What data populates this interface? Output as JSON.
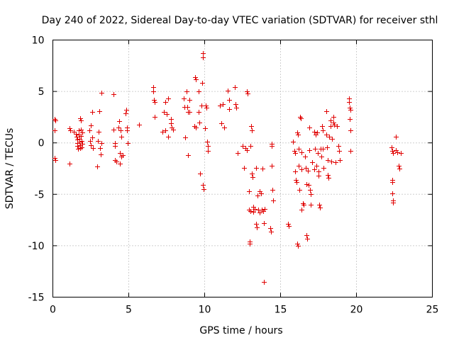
{
  "chart_data": {
    "type": "scatter",
    "title": "Day 240 of 2022, Sidereal Day-to-day VTEC variation (SDTVAR) for receiver sthl",
    "xlabel": "GPS time / hours",
    "ylabel": "SDTVAR / TECUs",
    "xlim": [
      0,
      25
    ],
    "ylim": [
      -15,
      10
    ],
    "xticks": [
      0,
      5,
      10,
      15,
      20,
      25
    ],
    "yticks": [
      -15,
      -10,
      -5,
      0,
      5,
      10
    ],
    "xtick_labels": [
      "0",
      "5",
      "10",
      "15",
      "20",
      "25"
    ],
    "ytick_labels": [
      "-15",
      "-10",
      "-5",
      "0",
      "5",
      "10"
    ],
    "grid": true,
    "marker": "+",
    "color": "#e00000",
    "series": [
      {
        "name": "SDTVAR",
        "points": [
          [
            0.1,
            2.3
          ],
          [
            0.15,
            2.2
          ],
          [
            0.1,
            1.2
          ],
          [
            0.1,
            -1.5
          ],
          [
            0.15,
            -1.7
          ],
          [
            1.1,
            1.4
          ],
          [
            1.15,
            1.2
          ],
          [
            1.1,
            -2.0
          ],
          [
            1.4,
            1.1
          ],
          [
            1.5,
            0.9
          ],
          [
            1.55,
            0.6
          ],
          [
            1.6,
            0.3
          ],
          [
            1.6,
            0.0
          ],
          [
            1.6,
            -0.3
          ],
          [
            1.65,
            -0.6
          ],
          [
            1.7,
            1.2
          ],
          [
            1.7,
            0.8
          ],
          [
            1.75,
            0.4
          ],
          [
            1.75,
            0.1
          ],
          [
            1.8,
            -0.2
          ],
          [
            1.8,
            -0.5
          ],
          [
            1.85,
            1.3
          ],
          [
            1.85,
            0.7
          ],
          [
            1.9,
            0.2
          ],
          [
            1.9,
            -0.4
          ],
          [
            1.95,
            1.0
          ],
          [
            1.95,
            -0.1
          ],
          [
            1.8,
            2.4
          ],
          [
            1.85,
            2.2
          ],
          [
            2.4,
            1.2
          ],
          [
            2.45,
            0.2
          ],
          [
            2.5,
            1.7
          ],
          [
            2.5,
            -0.2
          ],
          [
            2.6,
            3.0
          ],
          [
            2.6,
            0.5
          ],
          [
            2.65,
            -0.5
          ],
          [
            2.9,
            -2.3
          ],
          [
            2.95,
            0.2
          ],
          [
            3.0,
            1.1
          ],
          [
            3.05,
            3.1
          ],
          [
            3.1,
            -0.5
          ],
          [
            3.15,
            -1.1
          ],
          [
            3.2,
            4.9
          ],
          [
            3.2,
            0.0
          ],
          [
            4.0,
            4.7
          ],
          [
            4.0,
            1.3
          ],
          [
            4.1,
            0.0
          ],
          [
            4.1,
            -0.3
          ],
          [
            4.1,
            -1.7
          ],
          [
            4.2,
            -1.8
          ],
          [
            4.3,
            1.5
          ],
          [
            4.35,
            2.1
          ],
          [
            4.4,
            -1.0
          ],
          [
            4.4,
            -2.0
          ],
          [
            4.45,
            1.2
          ],
          [
            4.5,
            0.6
          ],
          [
            4.5,
            -1.3
          ],
          [
            4.6,
            -1.2
          ],
          [
            4.8,
            2.9
          ],
          [
            4.85,
            3.2
          ],
          [
            4.9,
            1.5
          ],
          [
            4.9,
            1.2
          ],
          [
            4.95,
            0.0
          ],
          [
            5.7,
            1.8
          ],
          [
            6.6,
            5.4
          ],
          [
            6.6,
            5.0
          ],
          [
            6.65,
            4.2
          ],
          [
            6.7,
            4.0
          ],
          [
            6.7,
            2.5
          ],
          [
            7.2,
            1.1
          ],
          [
            7.3,
            3.0
          ],
          [
            7.4,
            4.0
          ],
          [
            7.4,
            1.2
          ],
          [
            7.5,
            2.8
          ],
          [
            7.6,
            4.3
          ],
          [
            7.6,
            0.6
          ],
          [
            7.8,
            2.3
          ],
          [
            7.8,
            1.9
          ],
          [
            7.85,
            1.5
          ],
          [
            7.9,
            1.3
          ],
          [
            8.6,
            4.3
          ],
          [
            8.65,
            3.5
          ],
          [
            8.7,
            0.5
          ],
          [
            8.8,
            5.0
          ],
          [
            8.85,
            3.5
          ],
          [
            8.9,
            3.0
          ],
          [
            8.9,
            -1.2
          ],
          [
            9.0,
            4.2
          ],
          [
            9.0,
            3.0
          ],
          [
            9.3,
            1.6
          ],
          [
            9.35,
            6.4
          ],
          [
            9.4,
            6.2
          ],
          [
            9.4,
            1.5
          ],
          [
            9.6,
            5.0
          ],
          [
            9.6,
            3.0
          ],
          [
            9.65,
            2.0
          ],
          [
            9.7,
            -3.0
          ],
          [
            9.8,
            3.6
          ],
          [
            9.85,
            5.8
          ],
          [
            9.9,
            8.7
          ],
          [
            9.9,
            8.3
          ],
          [
            9.9,
            -4.1
          ],
          [
            9.95,
            -4.5
          ],
          [
            10.0,
            1.4
          ],
          [
            10.05,
            3.6
          ],
          [
            10.1,
            3.4
          ],
          [
            10.15,
            0.1
          ],
          [
            10.2,
            -0.3
          ],
          [
            10.2,
            -0.8
          ],
          [
            11.0,
            3.6
          ],
          [
            11.1,
            1.9
          ],
          [
            11.2,
            3.8
          ],
          [
            11.3,
            1.5
          ],
          [
            11.5,
            5.1
          ],
          [
            11.6,
            4.2
          ],
          [
            11.6,
            3.3
          ],
          [
            12.0,
            5.4
          ],
          [
            12.05,
            3.8
          ],
          [
            12.1,
            3.4
          ],
          [
            12.15,
            -1.0
          ],
          [
            12.5,
            -0.3
          ],
          [
            12.6,
            -2.4
          ],
          [
            12.7,
            -0.5
          ],
          [
            12.8,
            -0.7
          ],
          [
            12.8,
            5.0
          ],
          [
            12.85,
            4.8
          ],
          [
            12.9,
            -4.7
          ],
          [
            12.9,
            -6.5
          ],
          [
            12.95,
            -9.6
          ],
          [
            12.95,
            -9.8
          ],
          [
            13.0,
            -0.3
          ],
          [
            13.0,
            -6.6
          ],
          [
            13.05,
            1.6
          ],
          [
            13.1,
            1.2
          ],
          [
            13.1,
            -3.0
          ],
          [
            13.15,
            -3.3
          ],
          [
            13.2,
            -6.2
          ],
          [
            13.2,
            -6.7
          ],
          [
            13.3,
            -6.4
          ],
          [
            13.4,
            -2.4
          ],
          [
            13.4,
            -7.9
          ],
          [
            13.45,
            -8.2
          ],
          [
            13.5,
            -5.1
          ],
          [
            13.55,
            -6.5
          ],
          [
            13.6,
            -4.7
          ],
          [
            13.6,
            -6.8
          ],
          [
            13.7,
            -4.9
          ],
          [
            13.75,
            -6.5
          ],
          [
            13.8,
            -2.5
          ],
          [
            13.85,
            -6.6
          ],
          [
            13.9,
            -13.5
          ],
          [
            13.9,
            -7.8
          ],
          [
            13.95,
            -6.4
          ],
          [
            14.3,
            -8.3
          ],
          [
            14.35,
            -8.6
          ],
          [
            14.4,
            -0.1
          ],
          [
            14.4,
            -0.3
          ],
          [
            14.4,
            -2.2
          ],
          [
            14.45,
            -4.6
          ],
          [
            14.5,
            -5.6
          ],
          [
            15.5,
            -7.9
          ],
          [
            15.55,
            -8.1
          ],
          [
            15.8,
            0.1
          ],
          [
            15.9,
            -0.8
          ],
          [
            15.95,
            -1.0
          ],
          [
            15.95,
            -2.8
          ],
          [
            16.0,
            -3.6
          ],
          [
            16.05,
            -3.8
          ],
          [
            16.1,
            -9.8
          ],
          [
            16.15,
            -10.0
          ],
          [
            16.1,
            1.0
          ],
          [
            16.15,
            0.8
          ],
          [
            16.2,
            -0.6
          ],
          [
            16.2,
            -2.2
          ],
          [
            16.25,
            -4.6
          ],
          [
            16.3,
            2.5
          ],
          [
            16.35,
            2.4
          ],
          [
            16.4,
            -0.9
          ],
          [
            16.4,
            -2.6
          ],
          [
            16.4,
            -6.5
          ],
          [
            16.45,
            -5.9
          ],
          [
            16.5,
            -6.0
          ],
          [
            16.6,
            -1.3
          ],
          [
            16.65,
            -2.4
          ],
          [
            16.7,
            -4.0
          ],
          [
            16.7,
            -9.0
          ],
          [
            16.75,
            -9.3
          ],
          [
            16.8,
            -2.7
          ],
          [
            16.85,
            -4.1
          ],
          [
            16.9,
            1.5
          ],
          [
            16.9,
            -0.7
          ],
          [
            16.95,
            -4.6
          ],
          [
            17.0,
            -5.0
          ],
          [
            17.0,
            -6.0
          ],
          [
            17.1,
            -1.9
          ],
          [
            17.2,
            1.1
          ],
          [
            17.2,
            -2.6
          ],
          [
            17.25,
            -0.6
          ],
          [
            17.3,
            0.8
          ],
          [
            17.35,
            -2.2
          ],
          [
            17.4,
            1.0
          ],
          [
            17.45,
            -1.0
          ],
          [
            17.5,
            -2.8
          ],
          [
            17.5,
            -3.2
          ],
          [
            17.55,
            -6.0
          ],
          [
            17.6,
            -6.3
          ],
          [
            17.65,
            -0.6
          ],
          [
            17.7,
            -1.3
          ],
          [
            17.75,
            1.6
          ],
          [
            17.8,
            1.2
          ],
          [
            17.8,
            -0.6
          ],
          [
            17.85,
            -2.4
          ],
          [
            18.0,
            3.1
          ],
          [
            18.0,
            0.8
          ],
          [
            18.05,
            -0.4
          ],
          [
            18.1,
            -1.7
          ],
          [
            18.1,
            -3.1
          ],
          [
            18.15,
            -3.4
          ],
          [
            18.2,
            0.6
          ],
          [
            18.3,
            2.2
          ],
          [
            18.3,
            1.6
          ],
          [
            18.35,
            -1.8
          ],
          [
            18.4,
            0.4
          ],
          [
            18.5,
            2.5
          ],
          [
            18.5,
            2.0
          ],
          [
            18.55,
            1.8
          ],
          [
            18.6,
            -1.9
          ],
          [
            18.7,
            1.6
          ],
          [
            18.8,
            -0.3
          ],
          [
            18.85,
            -0.8
          ],
          [
            18.9,
            -1.7
          ],
          [
            19.5,
            4.3
          ],
          [
            19.5,
            4.0
          ],
          [
            19.55,
            3.4
          ],
          [
            19.6,
            3.2
          ],
          [
            19.55,
            2.3
          ],
          [
            19.6,
            1.2
          ],
          [
            19.6,
            -0.8
          ],
          [
            22.3,
            -0.4
          ],
          [
            22.35,
            -0.8
          ],
          [
            22.4,
            -1.0
          ],
          [
            22.35,
            -3.6
          ],
          [
            22.35,
            -3.8
          ],
          [
            22.35,
            -4.9
          ],
          [
            22.4,
            -5.6
          ],
          [
            22.4,
            -5.8
          ],
          [
            22.6,
            0.6
          ],
          [
            22.6,
            -0.7
          ],
          [
            22.7,
            -0.9
          ],
          [
            22.8,
            -2.2
          ],
          [
            22.85,
            -2.5
          ],
          [
            22.9,
            -1.0
          ]
        ]
      }
    ]
  }
}
